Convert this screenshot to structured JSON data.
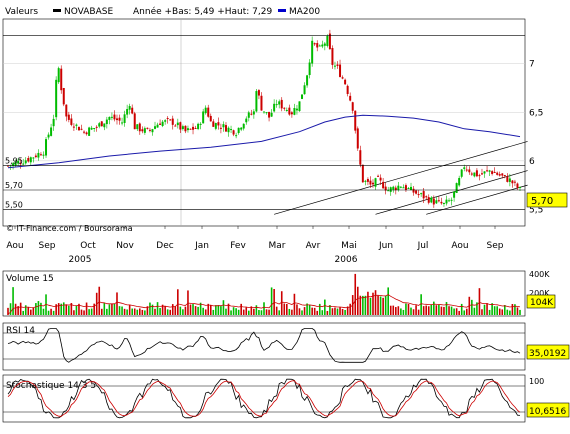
{
  "legend": {
    "series_label": "Valeurs",
    "stock_name": "NOVABASE",
    "year_stats": "Année +Bas: 5,49 +Haut: 7,29",
    "ma_label": "MA200",
    "color_price": "#000000",
    "color_ma": "#0000cc"
  },
  "credit": "© IT-Finance.com / Boursorama",
  "colors": {
    "up": "#00bb00",
    "down": "#cc0000",
    "ma": "#1a1aaa",
    "grid": "#bbbbbb",
    "label_bg": "#ffff00"
  },
  "chart_data": [
    {
      "type": "candlestick",
      "title": "NOVABASE",
      "x_months": [
        "Aou",
        "Sep",
        "Oct",
        "Nov",
        "Dec",
        "Jan",
        "Fev",
        "Mar",
        "Avr",
        "Mai",
        "Jun",
        "Jul",
        "Aou",
        "Sep"
      ],
      "x_years": [
        "2005",
        "2006"
      ],
      "y_ticks": [
        "7",
        "6,5",
        "6",
        "5,5"
      ],
      "y_tick_values": [
        7,
        6.5,
        6,
        5.5
      ],
      "ylim": [
        5.35,
        7.45
      ],
      "price_levels": [
        {
          "label": "5,95",
          "value": 5.95
        },
        {
          "label": "5,70",
          "value": 5.7
        },
        {
          "label": "5,50",
          "value": 5.5
        }
      ],
      "last_value_label": "5,70",
      "last_value": 5.7,
      "close_points": [
        [
          0,
          5.95
        ],
        [
          8,
          6.02
        ],
        [
          14,
          6.1
        ],
        [
          18,
          6.45
        ],
        [
          19,
          6.8
        ],
        [
          20,
          6.95
        ],
        [
          21,
          6.75
        ],
        [
          23,
          6.45
        ],
        [
          25,
          6.4
        ],
        [
          30,
          6.3
        ],
        [
          35,
          6.35
        ],
        [
          40,
          6.45
        ],
        [
          45,
          6.4
        ],
        [
          48,
          6.6
        ],
        [
          50,
          6.35
        ],
        [
          55,
          6.3
        ],
        [
          60,
          6.4
        ],
        [
          65,
          6.4
        ],
        [
          70,
          6.3
        ],
        [
          75,
          6.35
        ],
        [
          78,
          6.55
        ],
        [
          80,
          6.4
        ],
        [
          85,
          6.35
        ],
        [
          90,
          6.3
        ],
        [
          94,
          6.45
        ],
        [
          97,
          6.5
        ],
        [
          98,
          6.75
        ],
        [
          100,
          6.55
        ],
        [
          103,
          6.45
        ],
        [
          106,
          6.6
        ],
        [
          109,
          6.55
        ],
        [
          112,
          6.5
        ],
        [
          115,
          6.6
        ],
        [
          118,
          6.9
        ],
        [
          120,
          7.2
        ],
        [
          123,
          7.15
        ],
        [
          126,
          7.25
        ],
        [
          128,
          7.0
        ],
        [
          130,
          6.95
        ],
        [
          133,
          6.8
        ],
        [
          136,
          6.55
        ],
        [
          138,
          6.1
        ],
        [
          140,
          5.8
        ],
        [
          143,
          5.75
        ],
        [
          146,
          5.8
        ],
        [
          150,
          5.7
        ],
        [
          155,
          5.75
        ],
        [
          160,
          5.68
        ],
        [
          165,
          5.62
        ],
        [
          168,
          5.58
        ],
        [
          172,
          5.55
        ],
        [
          175,
          5.6
        ],
        [
          178,
          5.8
        ],
        [
          180,
          5.95
        ],
        [
          183,
          5.88
        ],
        [
          186,
          5.85
        ],
        [
          190,
          5.9
        ],
        [
          194,
          5.85
        ],
        [
          198,
          5.8
        ],
        [
          202,
          5.7
        ]
      ],
      "ma200_points": [
        [
          0,
          5.93
        ],
        [
          20,
          5.98
        ],
        [
          40,
          6.05
        ],
        [
          60,
          6.1
        ],
        [
          80,
          6.14
        ],
        [
          100,
          6.2
        ],
        [
          115,
          6.3
        ],
        [
          125,
          6.4
        ],
        [
          133,
          6.45
        ],
        [
          140,
          6.47
        ],
        [
          150,
          6.46
        ],
        [
          160,
          6.44
        ],
        [
          170,
          6.4
        ],
        [
          180,
          6.33
        ],
        [
          190,
          6.3
        ],
        [
          202,
          6.25
        ]
      ],
      "trendlines": [
        {
          "from": [
            105,
            5.45
          ],
          "to": [
            205,
            6.2
          ]
        },
        {
          "from": [
            145,
            5.45
          ],
          "to": [
            205,
            5.9
          ]
        },
        {
          "from": [
            165,
            5.45
          ],
          "to": [
            205,
            5.75
          ]
        }
      ]
    },
    {
      "type": "bar",
      "title": "Volume 15",
      "y_ticks": [
        "400K",
        "200K"
      ],
      "ylim": [
        0,
        420000
      ],
      "last_value_label": "104K",
      "last_value": 104000
    },
    {
      "type": "line",
      "title": "RSI 14",
      "last_value_label": "35,0192",
      "last_value": 35.0192,
      "ylim": [
        0,
        100
      ],
      "levels": [
        70,
        30
      ]
    },
    {
      "type": "line",
      "title": "Stochastique 14 3 5",
      "y_ticks": [
        "100"
      ],
      "last_value_label": "10,6516",
      "last_value": 10.6516,
      "ylim": [
        0,
        100
      ],
      "levels": [
        80,
        20
      ]
    }
  ]
}
